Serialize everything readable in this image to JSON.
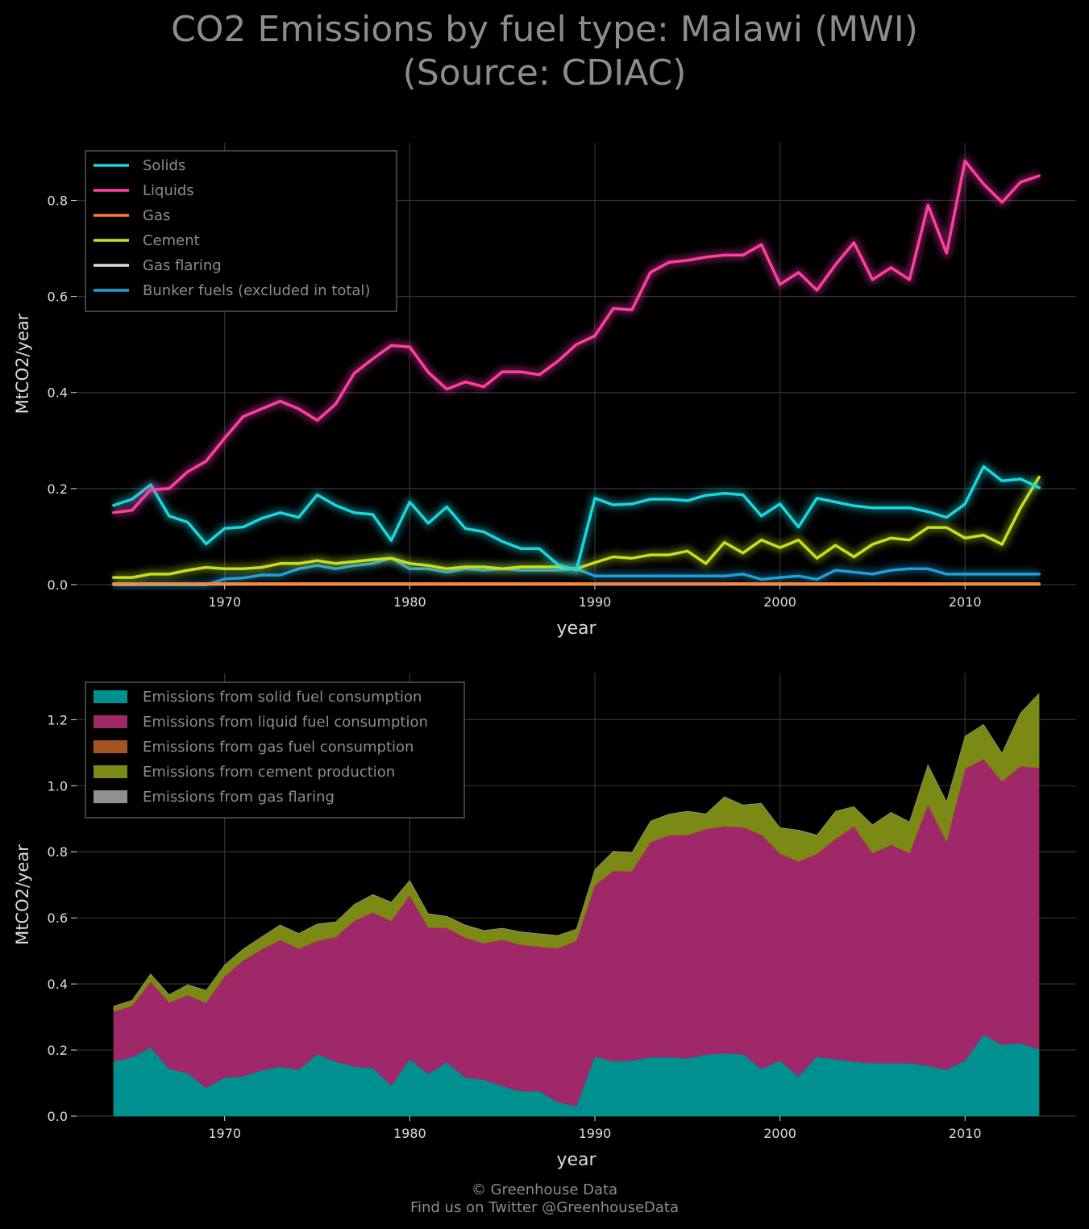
{
  "title": {
    "line1": "CO2 Emissions by fuel type: Malawi (MWI)",
    "line2": "(Source: CDIAC)"
  },
  "footer": {
    "line1": "© Greenhouse Data",
    "line2": "Find us on Twitter @GreenhouseData"
  },
  "colors": {
    "background": "#000000",
    "grid": "#333333",
    "text": "#dddddd",
    "muted_text": "#8c8c8c",
    "solids": "#18d7e0",
    "liquids": "#ff3ea5",
    "gas": "#ff7f2a",
    "cement": "#c6e01a",
    "gas_flaring": "#dddddd",
    "bunker": "#1f9ed8",
    "area_solid": "#009090",
    "area_liquid": "#9e2868",
    "area_gas": "#a65420",
    "area_cement": "#7a8a14",
    "area_flaring": "#909090"
  },
  "chart_data": [
    {
      "type": "line",
      "xlabel": "year",
      "ylabel": "MtCO2/year",
      "xlim": [
        1962,
        2016
      ],
      "ylim": [
        0,
        0.92
      ],
      "xticks": [
        1970,
        1980,
        1990,
        2000,
        2010
      ],
      "yticks": [
        0.0,
        0.2,
        0.4,
        0.6,
        0.8
      ],
      "legend_position": "top-left",
      "grid": true,
      "x": [
        1964,
        1965,
        1966,
        1967,
        1968,
        1969,
        1970,
        1971,
        1972,
        1973,
        1974,
        1975,
        1976,
        1977,
        1978,
        1979,
        1980,
        1981,
        1982,
        1983,
        1984,
        1985,
        1986,
        1987,
        1988,
        1989,
        1990,
        1991,
        1992,
        1993,
        1994,
        1995,
        1996,
        1997,
        1998,
        1999,
        2000,
        2001,
        2002,
        2003,
        2004,
        2005,
        2006,
        2007,
        2008,
        2009,
        2010,
        2011,
        2012,
        2013,
        2014
      ],
      "series": [
        {
          "name": "Solids",
          "color_key": "solids",
          "values": [
            0.165,
            0.178,
            0.208,
            0.143,
            0.13,
            0.085,
            0.117,
            0.12,
            0.138,
            0.15,
            0.14,
            0.187,
            0.165,
            0.15,
            0.146,
            0.092,
            0.172,
            0.128,
            0.162,
            0.117,
            0.11,
            0.09,
            0.075,
            0.075,
            0.042,
            0.03,
            0.18,
            0.166,
            0.168,
            0.178,
            0.178,
            0.175,
            0.186,
            0.19,
            0.187,
            0.143,
            0.168,
            0.12,
            0.18,
            0.172,
            0.164,
            0.16,
            0.16,
            0.16,
            0.152,
            0.14,
            0.168,
            0.246,
            0.216,
            0.22,
            0.202
          ]
        },
        {
          "name": "Liquids",
          "color_key": "liquids",
          "values": [
            0.15,
            0.155,
            0.198,
            0.2,
            0.235,
            0.257,
            0.305,
            0.35,
            0.366,
            0.382,
            0.366,
            0.342,
            0.376,
            0.44,
            0.47,
            0.498,
            0.495,
            0.442,
            0.407,
            0.422,
            0.412,
            0.443,
            0.443,
            0.437,
            0.465,
            0.5,
            0.518,
            0.575,
            0.572,
            0.65,
            0.671,
            0.675,
            0.682,
            0.686,
            0.686,
            0.708,
            0.625,
            0.65,
            0.613,
            0.666,
            0.712,
            0.635,
            0.66,
            0.635,
            0.79,
            0.69,
            0.882,
            0.834,
            0.796,
            0.838,
            0.851
          ]
        },
        {
          "name": "Gas",
          "color_key": "gas",
          "values": [
            0.002,
            0.002,
            0.002,
            0.002,
            0.002,
            0.002,
            0.002,
            0.002,
            0.002,
            0.002,
            0.002,
            0.002,
            0.002,
            0.002,
            0.002,
            0.002,
            0.002,
            0.002,
            0.002,
            0.002,
            0.002,
            0.002,
            0.002,
            0.002,
            0.002,
            0.002,
            0.002,
            0.002,
            0.002,
            0.002,
            0.002,
            0.002,
            0.002,
            0.002,
            0.002,
            0.002,
            0.002,
            0.002,
            0.002,
            0.002,
            0.002,
            0.002,
            0.002,
            0.002,
            0.002,
            0.002,
            0.002,
            0.002,
            0.002,
            0.002,
            0.002
          ]
        },
        {
          "name": "Cement",
          "color_key": "cement",
          "values": [
            0.015,
            0.015,
            0.022,
            0.022,
            0.03,
            0.036,
            0.033,
            0.033,
            0.036,
            0.044,
            0.044,
            0.05,
            0.044,
            0.048,
            0.052,
            0.055,
            0.044,
            0.04,
            0.033,
            0.037,
            0.037,
            0.033,
            0.037,
            0.037,
            0.037,
            0.033,
            0.046,
            0.058,
            0.055,
            0.062,
            0.062,
            0.07,
            0.044,
            0.088,
            0.066,
            0.093,
            0.077,
            0.093,
            0.055,
            0.082,
            0.058,
            0.084,
            0.097,
            0.093,
            0.119,
            0.119,
            0.097,
            0.103,
            0.084,
            0.16,
            0.224
          ]
        },
        {
          "name": "Gas flaring",
          "color_key": "gas_flaring",
          "values": [
            0.001,
            0.001,
            0.001,
            0.001,
            0.001,
            0.001,
            0.001,
            0.001,
            0.001,
            0.001,
            0.001,
            0.001,
            0.001,
            0.001,
            0.001,
            0.001,
            0.001,
            0.001,
            0.001,
            0.001,
            0.001,
            0.001,
            0.001,
            0.001,
            0.001,
            0.001,
            0.001,
            0.001,
            0.001,
            0.001,
            0.001,
            0.001,
            0.001,
            0.001,
            0.001,
            0.001,
            0.001,
            0.001,
            0.001,
            0.001,
            0.001,
            0.001,
            0.001,
            0.001,
            0.001,
            0.001,
            0.001,
            0.001,
            0.001,
            0.001,
            0.001
          ]
        },
        {
          "name": "Bunker fuels (excluded in total)",
          "color_key": "bunker",
          "values": [
            0.0,
            0.0,
            0.0,
            0.0,
            0.0,
            0.0,
            0.012,
            0.014,
            0.02,
            0.02,
            0.033,
            0.04,
            0.033,
            0.04,
            0.044,
            0.055,
            0.033,
            0.033,
            0.026,
            0.033,
            0.03,
            0.033,
            0.03,
            0.03,
            0.03,
            0.033,
            0.018,
            0.018,
            0.018,
            0.018,
            0.018,
            0.018,
            0.018,
            0.018,
            0.022,
            0.011,
            0.015,
            0.018,
            0.011,
            0.03,
            0.026,
            0.022,
            0.03,
            0.033,
            0.033,
            0.022,
            0.022,
            0.022,
            0.022,
            0.022,
            0.022
          ]
        }
      ]
    },
    {
      "type": "area",
      "stacked": true,
      "xlabel": "year",
      "ylabel": "MtCO2/year",
      "xlim": [
        1962,
        2016
      ],
      "ylim": [
        0,
        1.34
      ],
      "xticks": [
        1970,
        1980,
        1990,
        2000,
        2010
      ],
      "yticks": [
        0.0,
        0.2,
        0.4,
        0.6,
        0.8,
        1.0,
        1.2
      ],
      "legend_position": "top-left",
      "grid": true,
      "x": [
        1964,
        1965,
        1966,
        1967,
        1968,
        1969,
        1970,
        1971,
        1972,
        1973,
        1974,
        1975,
        1976,
        1977,
        1978,
        1979,
        1980,
        1981,
        1982,
        1983,
        1984,
        1985,
        1986,
        1987,
        1988,
        1989,
        1990,
        1991,
        1992,
        1993,
        1994,
        1995,
        1996,
        1997,
        1998,
        1999,
        2000,
        2001,
        2002,
        2003,
        2004,
        2005,
        2006,
        2007,
        2008,
        2009,
        2010,
        2011,
        2012,
        2013,
        2014
      ],
      "series": [
        {
          "name": "Emissions from solid fuel consumption",
          "color_key": "area_solid",
          "values": [
            0.165,
            0.178,
            0.208,
            0.143,
            0.13,
            0.085,
            0.117,
            0.12,
            0.138,
            0.15,
            0.14,
            0.187,
            0.165,
            0.15,
            0.146,
            0.092,
            0.172,
            0.128,
            0.162,
            0.117,
            0.11,
            0.09,
            0.075,
            0.075,
            0.042,
            0.03,
            0.18,
            0.166,
            0.168,
            0.178,
            0.178,
            0.175,
            0.186,
            0.19,
            0.187,
            0.143,
            0.168,
            0.12,
            0.18,
            0.172,
            0.164,
            0.16,
            0.16,
            0.16,
            0.152,
            0.14,
            0.168,
            0.246,
            0.216,
            0.22,
            0.202
          ]
        },
        {
          "name": "Emissions from liquid fuel consumption",
          "color_key": "area_liquid",
          "values": [
            0.15,
            0.155,
            0.198,
            0.2,
            0.235,
            0.257,
            0.305,
            0.35,
            0.366,
            0.382,
            0.366,
            0.342,
            0.376,
            0.44,
            0.47,
            0.498,
            0.495,
            0.442,
            0.407,
            0.422,
            0.412,
            0.443,
            0.443,
            0.437,
            0.465,
            0.5,
            0.518,
            0.575,
            0.572,
            0.65,
            0.671,
            0.675,
            0.682,
            0.686,
            0.686,
            0.708,
            0.625,
            0.65,
            0.613,
            0.666,
            0.712,
            0.635,
            0.66,
            0.635,
            0.79,
            0.69,
            0.882,
            0.834,
            0.796,
            0.838,
            0.851
          ]
        },
        {
          "name": "Emissions from gas fuel consumption",
          "color_key": "area_gas",
          "values": [
            0.002,
            0.002,
            0.002,
            0.002,
            0.002,
            0.002,
            0.002,
            0.002,
            0.002,
            0.002,
            0.002,
            0.002,
            0.002,
            0.002,
            0.002,
            0.002,
            0.002,
            0.002,
            0.002,
            0.002,
            0.002,
            0.002,
            0.002,
            0.002,
            0.002,
            0.002,
            0.002,
            0.002,
            0.002,
            0.002,
            0.002,
            0.002,
            0.002,
            0.002,
            0.002,
            0.002,
            0.002,
            0.002,
            0.002,
            0.002,
            0.002,
            0.002,
            0.002,
            0.002,
            0.002,
            0.002,
            0.002,
            0.002,
            0.002,
            0.002,
            0.002
          ]
        },
        {
          "name": "Emissions from cement production",
          "color_key": "area_cement",
          "values": [
            0.015,
            0.015,
            0.022,
            0.022,
            0.03,
            0.036,
            0.033,
            0.033,
            0.036,
            0.044,
            0.044,
            0.05,
            0.044,
            0.048,
            0.052,
            0.055,
            0.044,
            0.04,
            0.033,
            0.037,
            0.037,
            0.033,
            0.037,
            0.037,
            0.037,
            0.033,
            0.046,
            0.058,
            0.055,
            0.062,
            0.062,
            0.07,
            0.044,
            0.088,
            0.066,
            0.093,
            0.077,
            0.093,
            0.055,
            0.082,
            0.058,
            0.084,
            0.097,
            0.093,
            0.119,
            0.119,
            0.097,
            0.103,
            0.084,
            0.16,
            0.224
          ]
        },
        {
          "name": "Emissions from gas flaring",
          "color_key": "area_flaring",
          "values": [
            0.001,
            0.001,
            0.001,
            0.001,
            0.001,
            0.001,
            0.001,
            0.001,
            0.001,
            0.001,
            0.001,
            0.001,
            0.001,
            0.001,
            0.001,
            0.001,
            0.001,
            0.001,
            0.001,
            0.001,
            0.001,
            0.001,
            0.001,
            0.001,
            0.001,
            0.001,
            0.001,
            0.001,
            0.001,
            0.001,
            0.001,
            0.001,
            0.001,
            0.001,
            0.001,
            0.001,
            0.001,
            0.001,
            0.001,
            0.001,
            0.001,
            0.001,
            0.001,
            0.001,
            0.001,
            0.001,
            0.001,
            0.001,
            0.001,
            0.001,
            0.001
          ]
        }
      ]
    }
  ]
}
